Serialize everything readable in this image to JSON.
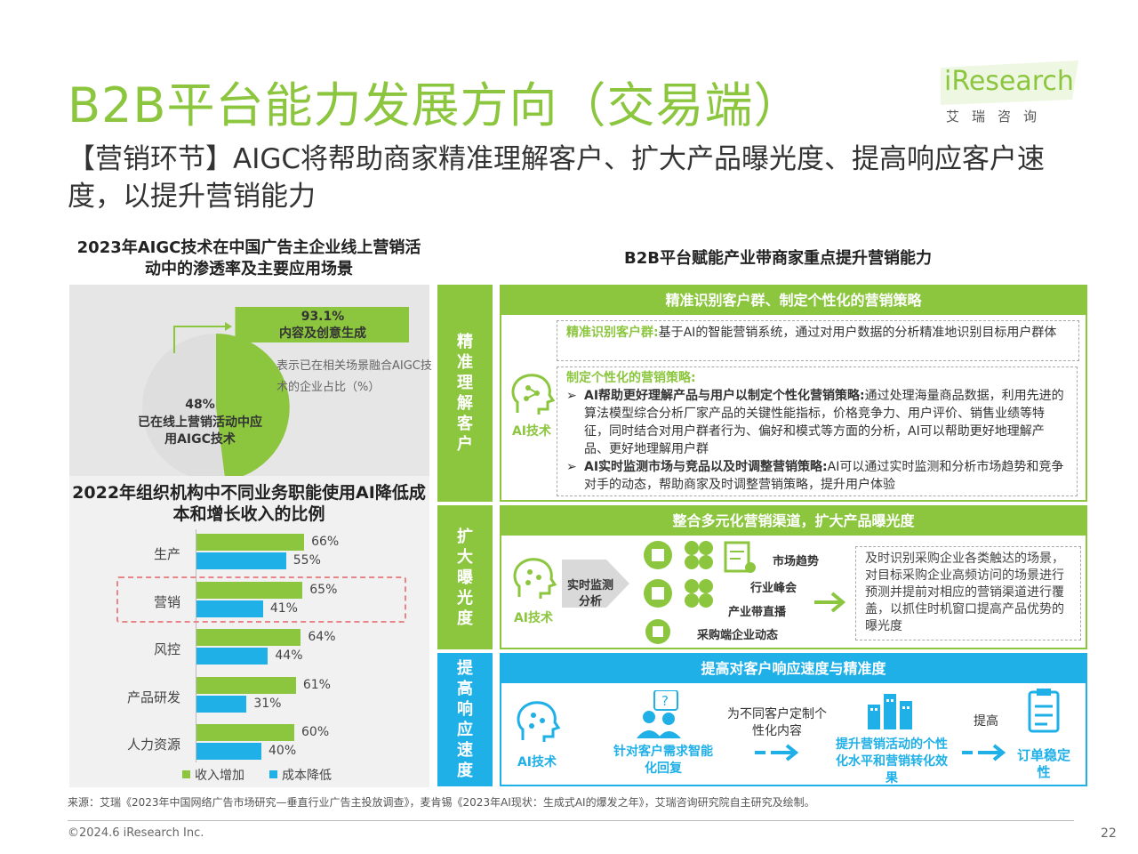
{
  "header": {
    "title": "B2B平台能力发展方向（交易端）",
    "subtitle": "【营销环节】AIGC将帮助商家精准理解客户、扩大产品曝光度、提高响应客户速度，以提升营销能力",
    "logo_text": "iResearch",
    "logo_cn": "艾瑞咨询"
  },
  "left": {
    "pie_title": "2023年AIGC技术在中国广告主企业线上营销活动中的渗透率及主要应用场景",
    "pie_main_value": "48%",
    "pie_main_label": "已在线上营销活动中应用AIGC技术",
    "pie_callout_value": "93.1%",
    "pie_callout_label": "内容及创意生成",
    "pie_legend": "表示已在相关场景融合AIGC技术的企业占比（%）",
    "bar_title": "2022年组织机构中不同业务职能使用AI降低成本和增长收入的比例",
    "legend_income": "收入增加",
    "legend_cost": "成本降低"
  },
  "chart_data": [
    {
      "type": "pie",
      "title": "2023年AIGC技术在中国广告主企业线上营销活动中的渗透率及主要应用场景",
      "slices": [
        {
          "label": "已在线上营销活动中应用AIGC技术",
          "value": 48
        },
        {
          "label": "",
          "value": 52
        }
      ],
      "annotations": [
        {
          "label": "内容及创意生成",
          "value": 93.1
        }
      ]
    },
    {
      "type": "bar",
      "title": "2022年组织机构中不同业务职能使用AI降低成本和增长收入的比例",
      "orientation": "horizontal",
      "categories": [
        "生产",
        "营销",
        "风控",
        "产品研发",
        "人力资源"
      ],
      "series": [
        {
          "name": "收入增加",
          "values": [
            66,
            65,
            64,
            61,
            60
          ],
          "color": "#8cc63f"
        },
        {
          "name": "成本降低",
          "values": [
            55,
            41,
            44,
            31,
            40
          ],
          "color": "#1fb0e8"
        }
      ],
      "value_labels_income": [
        "66%",
        "65%",
        "64%",
        "61%",
        "60%"
      ],
      "value_labels_cost": [
        "55%",
        "41%",
        "44%",
        "31%",
        "40%"
      ],
      "highlighted_category": "营销",
      "legend": "bottom"
    }
  ],
  "right": {
    "title": "B2B平台赋能产业带商家重点提升营销能力",
    "section1": {
      "side": "精准理解客户",
      "head": "精准识别客户群、制定个性化的营销策略",
      "ai_label": "AI技术",
      "box1_title": "精准识别客户群:",
      "box1_text": "基于AI的智能营销系统，通过对用户数据的分析精准地识别目标用户群体",
      "box2_title": "制定个性化的营销策略:",
      "bullet1_title": "AI帮助更好理解产品与用户以制定个性化营销策略:",
      "bullet1_text": "通过处理海量商品数据，利用先进的算法模型综合分析厂家产品的关键性能指标，价格竞争力、用户评价、销售业绩等特征，同时结合对用户群者行为、偏好和模式等方面的分析，AI可以帮助更好地理解产品、更好地理解用户群",
      "bullet2_title": "AI实时监测市场与竞品以及时调整营销策略:",
      "bullet2_text": "AI可以通过实时监测和分析市场趋势和竞争对手的动态，帮助商家及时调整营销策略，提升用户体验"
    },
    "section2": {
      "side": "扩大曝光度",
      "head": "整合多元化营销渠道，扩大产品曝光度",
      "ai_label": "AI技术",
      "arrow_label": "实时监测分析",
      "items": [
        "市场趋势",
        "行业峰会",
        "产业带直播",
        "采购端企业动态"
      ],
      "result": "及时识别采购企业各类触达的场景，对目标采购企业高频访问的场景进行预测并提前对相应的营销渠道进行覆盖，以抓住时机窗口提高产品优势的曝光度"
    },
    "section3": {
      "side": "提高响应速度",
      "head": "提高对客户响应速度与精准度",
      "ai_label": "AI技术",
      "step1": "针对客户需求智能化回复",
      "arrow1": "为不同客户定制个性化内容",
      "step2": "提升营销活动的个性化水平和营销转化效果",
      "arrow2": "提高",
      "step3": "订单稳定性"
    }
  },
  "footer": {
    "source": "来源：艾瑞《2023年中国网络广告市场研究—垂直行业广告主投放调查》，麦肯锡《2023年AI现状：生成式AI的爆发之年》，艾瑞咨询研究院自主研究及绘制。",
    "copyright": "©2024.6 iResearch Inc.",
    "page": "22"
  }
}
